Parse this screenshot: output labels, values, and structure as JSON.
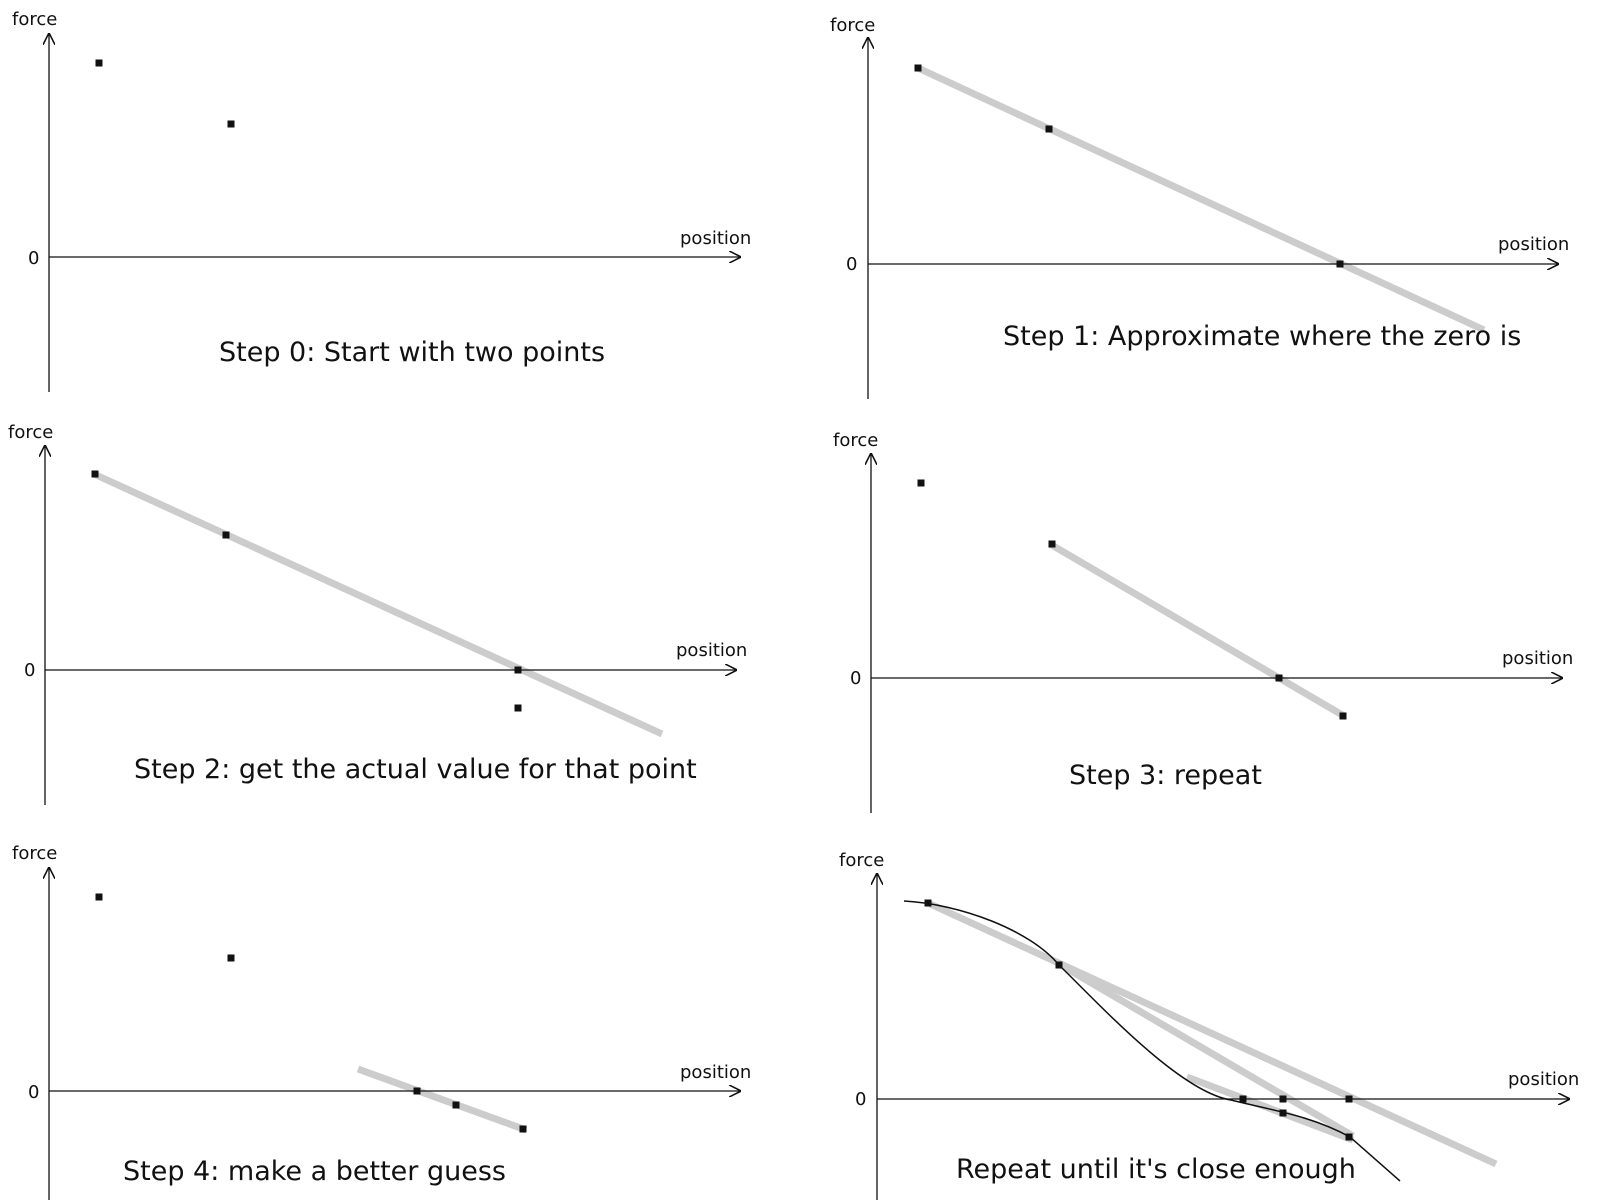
{
  "axis_labels": {
    "y": "force",
    "x": "position",
    "zero": "0"
  },
  "colors": {
    "ink": "#111111",
    "secant": "#cccccc",
    "background": "#ffffff"
  },
  "panels": [
    {
      "id": "step-0",
      "caption": "Step 0: Start with two points"
    },
    {
      "id": "step-1",
      "caption": "Step 1: Approximate where the zero is"
    },
    {
      "id": "step-2",
      "caption": "Step 2: get the actual value for that point"
    },
    {
      "id": "step-3",
      "caption": "Step 3: repeat"
    },
    {
      "id": "step-4",
      "caption": "Step 4: make a better guess"
    },
    {
      "id": "step-5",
      "caption": "Repeat until it's close enough"
    }
  ]
}
